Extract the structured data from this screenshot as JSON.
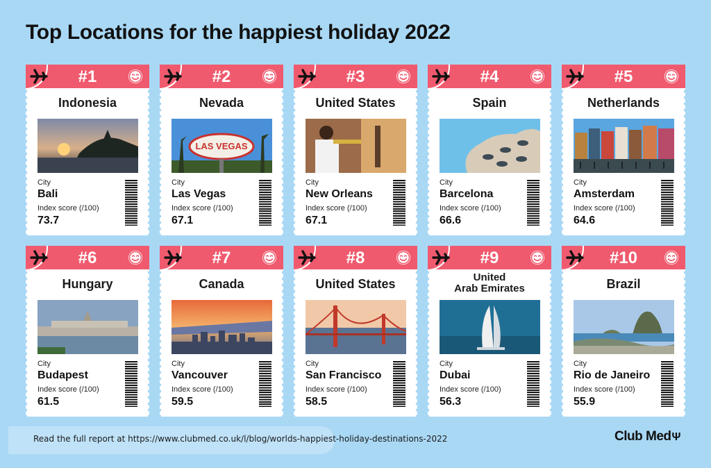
{
  "title": "Top Locations for the happiest holiday 2022",
  "labels": {
    "city": "City",
    "score": "Index score (/100)"
  },
  "entries": [
    {
      "rank": "#1",
      "location": "Indonesia",
      "city": "Bali",
      "score": "73.7",
      "photo": "sunset-temple"
    },
    {
      "rank": "#2",
      "location": "Nevada",
      "city": "Las Vegas",
      "score": "67.1",
      "photo": "welcome-sign"
    },
    {
      "rank": "#3",
      "location": "United States",
      "city": "New Orleans",
      "score": "67.1",
      "photo": "trumpet-player"
    },
    {
      "rank": "#4",
      "location": "Spain",
      "city": "Barcelona",
      "score": "66.6",
      "photo": "wavy-building"
    },
    {
      "rank": "#5",
      "location": "Netherlands",
      "city": "Amsterdam",
      "score": "64.6",
      "photo": "canal-houses"
    },
    {
      "rank": "#6",
      "location": "Hungary",
      "city": "Budapest",
      "score": "61.5",
      "photo": "parliament"
    },
    {
      "rank": "#7",
      "location": "Canada",
      "city": "Vancouver",
      "score": "59.5",
      "photo": "city-sunset"
    },
    {
      "rank": "#8",
      "location": "United States",
      "city": "San Francisco",
      "score": "58.5",
      "photo": "golden-gate"
    },
    {
      "rank": "#9",
      "location": "United\nArab Emirates",
      "city": "Dubai",
      "score": "56.3",
      "photo": "burj-al-arab"
    },
    {
      "rank": "#10",
      "location": "Brazil",
      "city": "Rio de Janeiro",
      "score": "55.9",
      "photo": "sugarloaf"
    }
  ],
  "footer": {
    "text": "Read the full report at https://www.clubmed.co.uk/l/blog/worlds-happiest-holiday-destinations-2022"
  },
  "brand": {
    "name": "Club Med",
    "icon": "trident-icon"
  },
  "colors": {
    "background": "#a9d8f5",
    "header": "#f05a6e",
    "card": "#ffffff"
  }
}
